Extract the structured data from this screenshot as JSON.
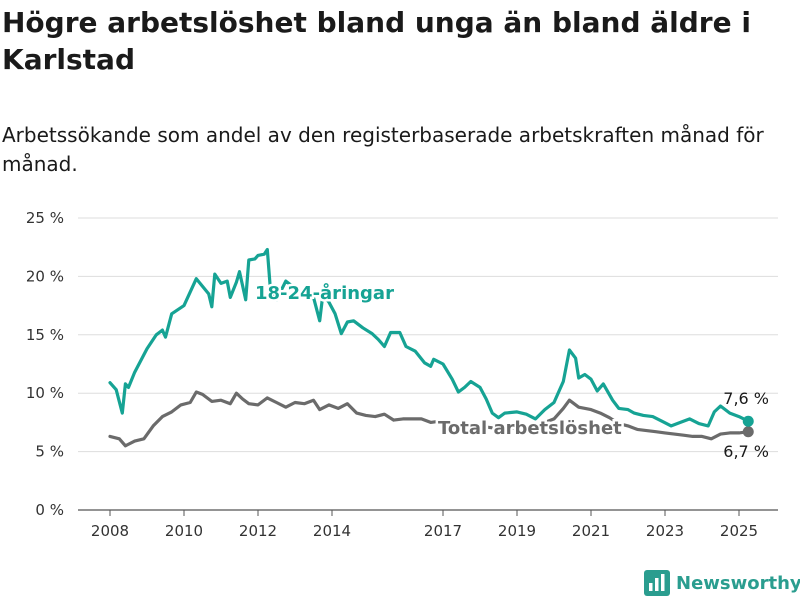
{
  "title": "Högre arbetslöshet bland unga än bland äldre i Karlstad",
  "subtitle": "Arbetssökande som andel av den registerbaserade arbetskraften månad för månad.",
  "brand": {
    "name": "Newsworthy",
    "icon": "bar-chart-logo-icon",
    "color": "#2a9d8f"
  },
  "chart_data": {
    "type": "line",
    "title": "Högre arbetslöshet bland unga än bland äldre i Karlstad",
    "subtitle": "Arbetssökande som andel av den registerbaserade arbetskraften månad för månad.",
    "y_ticks": [
      "0 %",
      "5 %",
      "10 %",
      "15 %",
      "20 %",
      "25 %"
    ],
    "x_ticks": [
      "2008",
      "2010",
      "2012",
      "2014",
      "2017",
      "2019",
      "2021",
      "2023",
      "2025"
    ],
    "ylim": [
      0,
      25
    ],
    "y_unit": "%",
    "grid": true,
    "legend": "inline labels",
    "series": [
      {
        "name": "18-24-åringar",
        "color": "#16a394",
        "end_label": "7,6 %",
        "points": [
          [
            "2008-01",
            10.9
          ],
          [
            "2008-03",
            10.3
          ],
          [
            "2008-05",
            8.3
          ],
          [
            "2008-06",
            10.8
          ],
          [
            "2008-07",
            10.5
          ],
          [
            "2008-09",
            11.8
          ],
          [
            "2009-01",
            13.8
          ],
          [
            "2009-04",
            15.0
          ],
          [
            "2009-06",
            15.4
          ],
          [
            "2009-07",
            14.8
          ],
          [
            "2009-09",
            16.8
          ],
          [
            "2010-01",
            17.5
          ],
          [
            "2010-05",
            19.8
          ],
          [
            "2010-09",
            18.5
          ],
          [
            "2010-10",
            17.4
          ],
          [
            "2010-11",
            20.2
          ],
          [
            "2011-01",
            19.4
          ],
          [
            "2011-03",
            19.6
          ],
          [
            "2011-04",
            18.2
          ],
          [
            "2011-06",
            19.5
          ],
          [
            "2011-07",
            20.4
          ],
          [
            "2011-09",
            18.0
          ],
          [
            "2011-10",
            21.4
          ],
          [
            "2011-12",
            21.5
          ],
          [
            "2012-01",
            21.8
          ],
          [
            "2012-03",
            21.9
          ],
          [
            "2012-04",
            22.3
          ],
          [
            "2012-05",
            19.0
          ],
          [
            "2012-07",
            18.0
          ],
          [
            "2012-10",
            19.6
          ],
          [
            "2013-01",
            19.0
          ],
          [
            "2013-04",
            18.5
          ],
          [
            "2013-07",
            18.2
          ],
          [
            "2013-09",
            16.2
          ],
          [
            "2013-10",
            18.4
          ],
          [
            "2013-12",
            17.8
          ],
          [
            "2014-02",
            16.8
          ],
          [
            "2014-04",
            15.1
          ],
          [
            "2014-06",
            16.1
          ],
          [
            "2014-08",
            16.2
          ],
          [
            "2014-11",
            15.6
          ],
          [
            "2015-02",
            15.1
          ],
          [
            "2015-04",
            14.6
          ],
          [
            "2015-06",
            14.0
          ],
          [
            "2015-08",
            15.2
          ],
          [
            "2015-11",
            15.2
          ],
          [
            "2016-01",
            14.0
          ],
          [
            "2016-04",
            13.6
          ],
          [
            "2016-07",
            12.6
          ],
          [
            "2016-09",
            12.3
          ],
          [
            "2016-10",
            12.9
          ],
          [
            "2017-01",
            12.5
          ],
          [
            "2017-04",
            11.2
          ],
          [
            "2017-06",
            10.1
          ],
          [
            "2017-08",
            10.5
          ],
          [
            "2017-10",
            11.0
          ],
          [
            "2018-01",
            10.5
          ],
          [
            "2018-03",
            9.5
          ],
          [
            "2018-05",
            8.3
          ],
          [
            "2018-07",
            7.9
          ],
          [
            "2018-09",
            8.3
          ],
          [
            "2019-01",
            8.4
          ],
          [
            "2019-04",
            8.2
          ],
          [
            "2019-07",
            7.8
          ],
          [
            "2019-10",
            8.6
          ],
          [
            "2020-01",
            9.2
          ],
          [
            "2020-04",
            11.0
          ],
          [
            "2020-06",
            13.7
          ],
          [
            "2020-08",
            13.0
          ],
          [
            "2020-09",
            11.3
          ],
          [
            "2020-11",
            11.6
          ],
          [
            "2021-01",
            11.2
          ],
          [
            "2021-03",
            10.2
          ],
          [
            "2021-05",
            10.8
          ],
          [
            "2021-08",
            9.4
          ],
          [
            "2021-10",
            8.7
          ],
          [
            "2022-01",
            8.6
          ],
          [
            "2022-03",
            8.3
          ],
          [
            "2022-06",
            8.1
          ],
          [
            "2022-09",
            8.0
          ],
          [
            "2022-12",
            7.6
          ],
          [
            "2023-03",
            7.2
          ],
          [
            "2023-06",
            7.5
          ],
          [
            "2023-09",
            7.8
          ],
          [
            "2023-12",
            7.4
          ],
          [
            "2024-03",
            7.2
          ],
          [
            "2024-05",
            8.4
          ],
          [
            "2024-07",
            8.9
          ],
          [
            "2024-10",
            8.3
          ],
          [
            "2025-01",
            8.0
          ],
          [
            "2025-04",
            7.6
          ]
        ]
      },
      {
        "name": "Total arbetslöshet",
        "color": "#6b6b6b",
        "end_label": "6,7 %",
        "points": [
          [
            "2008-01",
            6.3
          ],
          [
            "2008-04",
            6.1
          ],
          [
            "2008-06",
            5.5
          ],
          [
            "2008-09",
            5.9
          ],
          [
            "2008-12",
            6.1
          ],
          [
            "2009-03",
            7.2
          ],
          [
            "2009-06",
            8.0
          ],
          [
            "2009-09",
            8.4
          ],
          [
            "2009-12",
            9.0
          ],
          [
            "2010-03",
            9.2
          ],
          [
            "2010-05",
            10.1
          ],
          [
            "2010-07",
            9.9
          ],
          [
            "2010-10",
            9.3
          ],
          [
            "2011-01",
            9.4
          ],
          [
            "2011-04",
            9.1
          ],
          [
            "2011-06",
            10.0
          ],
          [
            "2011-08",
            9.5
          ],
          [
            "2011-10",
            9.1
          ],
          [
            "2012-01",
            9.0
          ],
          [
            "2012-04",
            9.6
          ],
          [
            "2012-07",
            9.2
          ],
          [
            "2012-10",
            8.8
          ],
          [
            "2013-01",
            9.2
          ],
          [
            "2013-04",
            9.1
          ],
          [
            "2013-07",
            9.4
          ],
          [
            "2013-09",
            8.6
          ],
          [
            "2013-12",
            9.0
          ],
          [
            "2014-03",
            8.7
          ],
          [
            "2014-06",
            9.1
          ],
          [
            "2014-09",
            8.3
          ],
          [
            "2014-12",
            8.1
          ],
          [
            "2015-03",
            8.0
          ],
          [
            "2015-06",
            8.2
          ],
          [
            "2015-09",
            7.7
          ],
          [
            "2015-12",
            7.8
          ],
          [
            "2016-03",
            7.8
          ],
          [
            "2016-06",
            7.8
          ],
          [
            "2016-09",
            7.5
          ],
          [
            "2016-12",
            7.6
          ],
          [
            "2017-03",
            7.5
          ],
          [
            "2017-06",
            7.2
          ],
          [
            "2017-09",
            7.3
          ],
          [
            "2017-12",
            7.2
          ],
          [
            "2018-03",
            7.1
          ],
          [
            "2018-06",
            7.0
          ],
          [
            "2018-09",
            7.1
          ],
          [
            "2018-12",
            7.0
          ],
          [
            "2019-03",
            7.1
          ],
          [
            "2019-06",
            7.0
          ],
          [
            "2019-09",
            7.4
          ],
          [
            "2020-01",
            7.8
          ],
          [
            "2020-04",
            8.7
          ],
          [
            "2020-06",
            9.4
          ],
          [
            "2020-09",
            8.8
          ],
          [
            "2021-01",
            8.6
          ],
          [
            "2021-04",
            8.3
          ],
          [
            "2021-07",
            7.9
          ],
          [
            "2021-10",
            7.4
          ],
          [
            "2022-01",
            7.2
          ],
          [
            "2022-04",
            6.9
          ],
          [
            "2022-07",
            6.8
          ],
          [
            "2022-10",
            6.7
          ],
          [
            "2023-01",
            6.6
          ],
          [
            "2023-04",
            6.5
          ],
          [
            "2023-07",
            6.4
          ],
          [
            "2023-10",
            6.3
          ],
          [
            "2024-01",
            6.3
          ],
          [
            "2024-04",
            6.1
          ],
          [
            "2024-07",
            6.5
          ],
          [
            "2024-10",
            6.6
          ],
          [
            "2025-01",
            6.6
          ],
          [
            "2025-04",
            6.7
          ]
        ]
      }
    ]
  }
}
